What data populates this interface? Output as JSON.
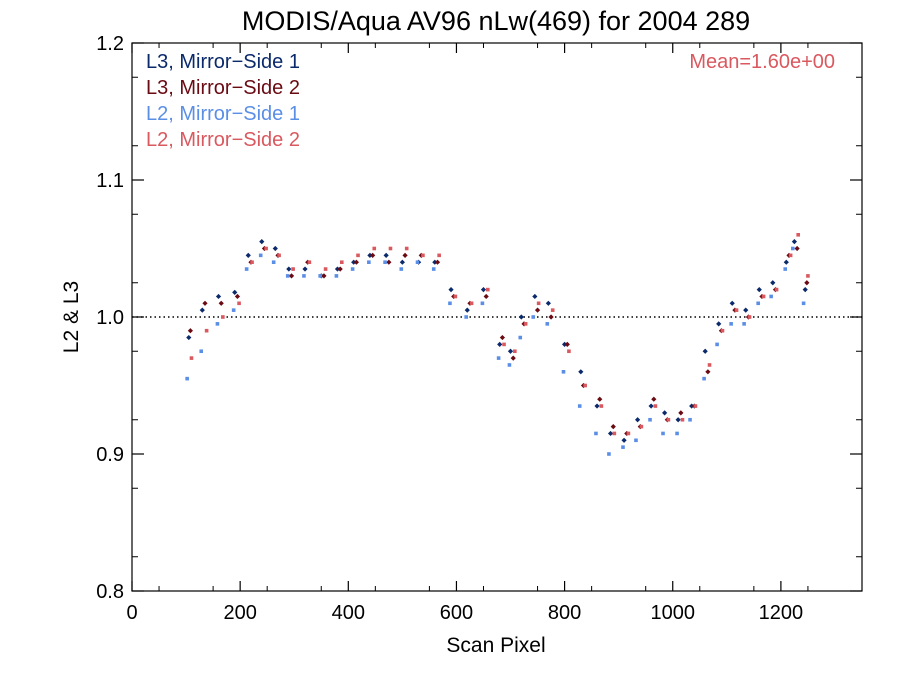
{
  "chart_data": {
    "type": "scatter",
    "title": "MODIS/Aqua AV96 nLw(469) for 2004 289",
    "xlabel": "Scan Pixel",
    "ylabel": "L2 & L3",
    "xlim": [
      0,
      1350
    ],
    "ylim": [
      0.8,
      1.2
    ],
    "x_ticks": [
      0,
      200,
      400,
      600,
      800,
      1000,
      1200
    ],
    "x_tick_labels": [
      "0",
      "200",
      "400",
      "600",
      "800",
      "1000",
      "1200"
    ],
    "y_ticks": [
      0.8,
      0.9,
      1.0,
      1.1,
      1.2
    ],
    "y_tick_labels": [
      "0.8",
      "0.9",
      "1.0",
      "1.1",
      "1.2"
    ],
    "reference_line": 1.0,
    "annotation": "Mean=1.60e+00",
    "annotation_color": "#d9595f",
    "legend_position": "top-left",
    "series": [
      {
        "name": "L3, Mirror−Side 1",
        "color": "#0b2a6b",
        "marker": "diamond",
        "x": [
          105,
          130,
          160,
          190,
          215,
          240,
          265,
          290,
          320,
          350,
          380,
          410,
          440,
          470,
          500,
          530,
          560,
          590,
          620,
          650,
          680,
          700,
          720,
          745,
          770,
          800,
          830,
          860,
          885,
          910,
          935,
          960,
          985,
          1010,
          1035,
          1060,
          1085,
          1110,
          1135,
          1160,
          1185,
          1210,
          1225,
          1245
        ],
        "y": [
          0.985,
          1.005,
          1.015,
          1.018,
          1.045,
          1.055,
          1.05,
          1.035,
          1.035,
          1.03,
          1.035,
          1.04,
          1.045,
          1.045,
          1.04,
          1.04,
          1.04,
          1.02,
          1.005,
          1.02,
          0.98,
          0.975,
          1.0,
          1.015,
          1.01,
          0.98,
          0.96,
          0.935,
          0.915,
          0.91,
          0.925,
          0.935,
          0.93,
          0.925,
          0.935,
          0.975,
          0.995,
          1.01,
          1.005,
          1.02,
          1.025,
          1.04,
          1.055,
          1.02
        ]
      },
      {
        "name": "L3, Mirror−Side 2",
        "color": "#6a0a12",
        "marker": "diamond",
        "x": [
          108,
          135,
          165,
          195,
          220,
          245,
          270,
          295,
          325,
          355,
          385,
          415,
          445,
          475,
          505,
          535,
          565,
          595,
          625,
          655,
          685,
          705,
          725,
          750,
          775,
          805,
          835,
          865,
          890,
          915,
          940,
          965,
          990,
          1015,
          1040,
          1065,
          1090,
          1115,
          1140,
          1165,
          1190,
          1215,
          1230,
          1248
        ],
        "y": [
          0.99,
          1.01,
          1.01,
          1.015,
          1.04,
          1.05,
          1.045,
          1.03,
          1.04,
          1.03,
          1.035,
          1.04,
          1.045,
          1.04,
          1.045,
          1.045,
          1.04,
          1.015,
          1.01,
          1.015,
          0.985,
          0.97,
          0.995,
          1.005,
          1.0,
          0.98,
          0.95,
          0.94,
          0.92,
          0.915,
          0.92,
          0.94,
          0.925,
          0.93,
          0.935,
          0.96,
          0.99,
          1.005,
          1.0,
          1.015,
          1.02,
          1.045,
          1.05,
          1.025
        ]
      },
      {
        "name": "L2, Mirror−Side 1",
        "color": "#5b8fe6",
        "marker": "square",
        "x": [
          102,
          128,
          158,
          188,
          212,
          238,
          262,
          288,
          318,
          348,
          378,
          408,
          438,
          468,
          498,
          528,
          558,
          588,
          618,
          648,
          678,
          698,
          718,
          742,
          768,
          798,
          828,
          858,
          882,
          908,
          932,
          958,
          982,
          1008,
          1032,
          1058,
          1082,
          1108,
          1132,
          1158,
          1182,
          1208,
          1222,
          1242
        ],
        "y": [
          0.955,
          0.975,
          0.995,
          1.005,
          1.035,
          1.045,
          1.04,
          1.03,
          1.03,
          1.03,
          1.03,
          1.035,
          1.04,
          1.04,
          1.035,
          1.04,
          1.035,
          1.01,
          1.0,
          1.01,
          0.97,
          0.965,
          0.985,
          1.0,
          0.995,
          0.96,
          0.935,
          0.915,
          0.9,
          0.905,
          0.91,
          0.925,
          0.915,
          0.915,
          0.925,
          0.955,
          0.98,
          0.995,
          0.995,
          1.01,
          1.015,
          1.035,
          1.05,
          1.01
        ]
      },
      {
        "name": "L2, Mirror−Side 2",
        "color": "#d9595f",
        "marker": "square",
        "x": [
          110,
          138,
          168,
          198,
          222,
          248,
          272,
          298,
          328,
          358,
          388,
          418,
          448,
          478,
          508,
          538,
          568,
          598,
          628,
          658,
          688,
          708,
          728,
          752,
          778,
          808,
          838,
          868,
          892,
          918,
          942,
          968,
          992,
          1018,
          1042,
          1068,
          1092,
          1118,
          1142,
          1168,
          1192,
          1218,
          1232,
          1250
        ],
        "y": [
          0.97,
          0.99,
          1.0,
          1.01,
          1.04,
          1.05,
          1.045,
          1.035,
          1.04,
          1.035,
          1.04,
          1.045,
          1.05,
          1.05,
          1.05,
          1.045,
          1.045,
          1.015,
          1.01,
          1.02,
          0.98,
          0.975,
          0.995,
          1.01,
          1.005,
          0.975,
          0.95,
          0.935,
          0.915,
          0.915,
          0.92,
          0.935,
          0.925,
          0.925,
          0.935,
          0.965,
          0.99,
          1.005,
          1.0,
          1.015,
          1.02,
          1.045,
          1.06,
          1.03
        ]
      }
    ]
  }
}
